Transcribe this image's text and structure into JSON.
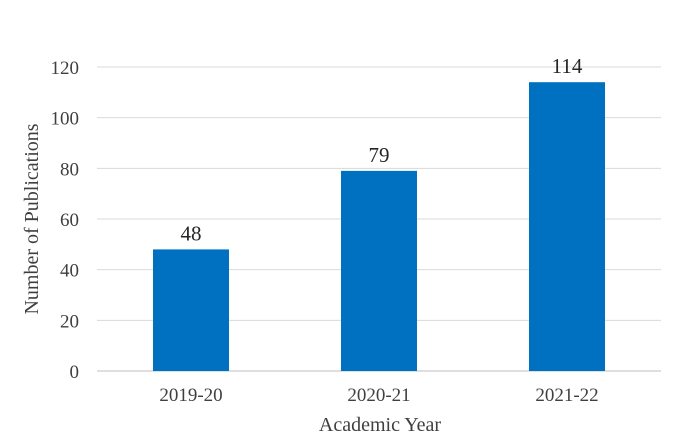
{
  "chart_data": {
    "type": "bar",
    "title": "",
    "xlabel": "Academic Year",
    "ylabel": "Number of Publications",
    "categories": [
      "2019-20",
      "2020-21",
      "2021-22"
    ],
    "values": [
      48,
      79,
      114
    ],
    "data_labels": [
      "48",
      "79",
      "114"
    ],
    "ylim": [
      0,
      120
    ],
    "yticks": [
      0,
      20,
      40,
      60,
      80,
      100,
      120
    ],
    "ytick_labels": [
      "0",
      "20",
      "40",
      "60",
      "80",
      "100",
      "120"
    ],
    "grid": true,
    "legend": "none",
    "bar_color": "#0070c0"
  }
}
